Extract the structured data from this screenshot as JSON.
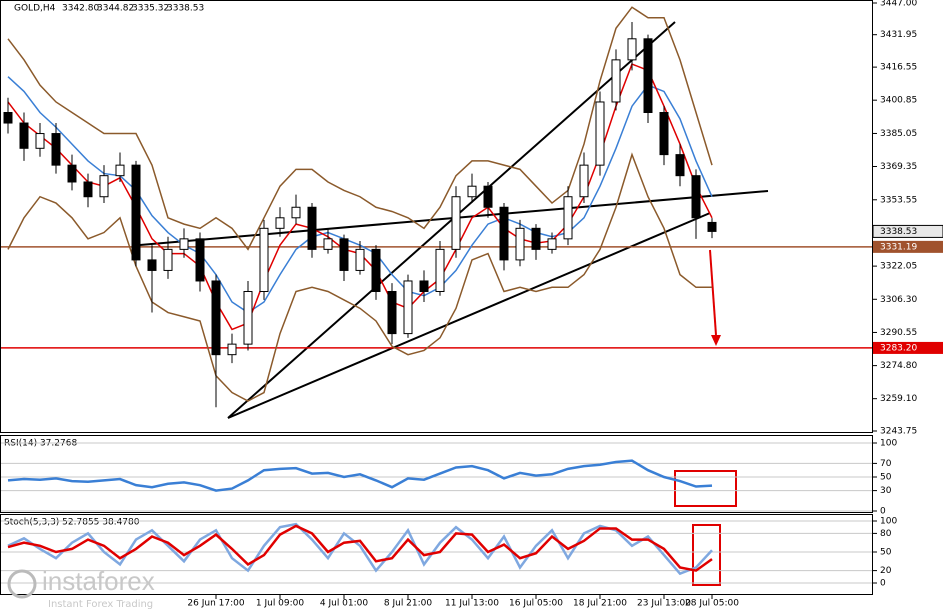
{
  "header": {
    "symbol": "GOLD,H4",
    "ohlc": [
      "3342.80",
      "3344.82",
      "3335.32",
      "3338.53"
    ]
  },
  "logo": {
    "brand": "instaforex",
    "tagline": "Instant Forex Trading"
  },
  "chart_data": [
    {
      "type": "candlestick",
      "categories": [
        null,
        null,
        null,
        null,
        null,
        null,
        null,
        null,
        null,
        null,
        null,
        null,
        null,
        "26 Jun 17:00",
        null,
        null,
        null,
        "1 Jul 09:00",
        null,
        null,
        null,
        "4 Jul 01:00",
        null,
        null,
        null,
        "8 Jul 21:00",
        null,
        null,
        null,
        "11 Jul 13:00",
        null,
        null,
        null,
        "16 Jul 05:00",
        null,
        null,
        null,
        "18 Jul 21:00",
        null,
        null,
        null,
        "23 Jul 13:00",
        null,
        null,
        "28 Jul 05:00"
      ],
      "open": [
        3395,
        3390,
        3378,
        3385,
        3370,
        3362,
        3355,
        3365,
        3370,
        3325,
        3320,
        3330,
        3335,
        3315,
        3280,
        3285,
        3310,
        3340,
        3345,
        3350,
        3330,
        3335,
        3320,
        3330,
        3310,
        3290,
        3315,
        3310,
        3330,
        3355,
        3360,
        3350,
        3325,
        3340,
        3330,
        3335,
        3355,
        3370,
        3400,
        3420,
        3430,
        3395,
        3375,
        3365,
        3342.8
      ],
      "high": [
        3402,
        3395,
        3390,
        3390,
        3375,
        3366,
        3370,
        3376,
        3372,
        3332,
        3336,
        3340,
        3338,
        3318,
        3290,
        3315,
        3344,
        3350,
        3356,
        3352,
        3340,
        3337,
        3334,
        3332,
        3314,
        3318,
        3320,
        3334,
        3360,
        3366,
        3362,
        3352,
        3344,
        3342,
        3338,
        3360,
        3376,
        3405,
        3425,
        3438,
        3432,
        3398,
        3380,
        3368,
        3344.82
      ],
      "low": [
        3385,
        3372,
        3374,
        3366,
        3358,
        3350,
        3352,
        3362,
        3322,
        3300,
        3316,
        3326,
        3310,
        3255,
        3276,
        3282,
        3306,
        3336,
        3342,
        3326,
        3328,
        3315,
        3318,
        3306,
        3285,
        3288,
        3305,
        3308,
        3326,
        3352,
        3345,
        3320,
        3322,
        3325,
        3328,
        3332,
        3352,
        3365,
        3396,
        3415,
        3390,
        3370,
        3360,
        3335,
        3335.32
      ],
      "close": [
        3390,
        3378,
        3385,
        3370,
        3362,
        3355,
        3365,
        3370,
        3325,
        3320,
        3330,
        3335,
        3315,
        3280,
        3285,
        3310,
        3340,
        3345,
        3350,
        3330,
        3335,
        3320,
        3330,
        3310,
        3290,
        3315,
        3310,
        3330,
        3355,
        3360,
        3350,
        3325,
        3340,
        3330,
        3335,
        3355,
        3370,
        3400,
        3420,
        3430,
        3395,
        3375,
        3365,
        3345,
        3338.53
      ],
      "candle_color": "#000000",
      "series": [
        {
          "color": "#8b5a2b",
          "values": [
            3430,
            3420,
            3408,
            3400,
            3395,
            3390,
            3385,
            3385,
            3385,
            3370,
            3345,
            3342,
            3340,
            3345,
            3340,
            3330,
            3345,
            3360,
            3368,
            3368,
            3362,
            3358,
            3355,
            3350,
            3348,
            3345,
            3340,
            3350,
            3365,
            3372,
            3372,
            3370,
            3368,
            3360,
            3352,
            3358,
            3380,
            3410,
            3435,
            3445,
            3440,
            3440,
            3420,
            3395,
            3370
          ]
        },
        {
          "color": "#8b5a2b",
          "values": [
            3330,
            3345,
            3355,
            3352,
            3345,
            3335,
            3338,
            3345,
            3322,
            3305,
            3300,
            3298,
            3296,
            3270,
            3262,
            3258,
            3262,
            3290,
            3310,
            3312,
            3310,
            3306,
            3302,
            3296,
            3284,
            3280,
            3282,
            3288,
            3302,
            3325,
            3328,
            3310,
            3312,
            3310,
            3312,
            3312,
            3318,
            3330,
            3350,
            3375,
            3355,
            3340,
            3318,
            3312,
            3312
          ]
        },
        {
          "color": "#3a7fd5",
          "values": [
            3412,
            3405,
            3395,
            3388,
            3380,
            3372,
            3366,
            3365,
            3358,
            3346,
            3338,
            3332,
            3328,
            3318,
            3305,
            3300,
            3305,
            3318,
            3330,
            3336,
            3338,
            3335,
            3332,
            3328,
            3318,
            3310,
            3308,
            3312,
            3320,
            3332,
            3342,
            3345,
            3342,
            3338,
            3336,
            3338,
            3345,
            3360,
            3378,
            3398,
            3408,
            3405,
            3392,
            3372,
            3355
          ]
        },
        {
          "color": "#e00000",
          "values": [
            3400,
            3390,
            3384,
            3378,
            3370,
            3362,
            3360,
            3364,
            3350,
            3335,
            3328,
            3328,
            3322,
            3305,
            3292,
            3295,
            3315,
            3332,
            3342,
            3340,
            3336,
            3330,
            3328,
            3320,
            3305,
            3302,
            3310,
            3316,
            3330,
            3345,
            3350,
            3340,
            3335,
            3333,
            3334,
            3342,
            3355,
            3375,
            3398,
            3418,
            3415,
            3398,
            3380,
            3360,
            3345
          ]
        }
      ],
      "ylim": [
        3243.75,
        3447
      ],
      "yticks": [
        {
          "value": 3447,
          "label": "3447.00"
        },
        3431.95,
        3416.55,
        3400.85,
        3385.05,
        3369.35,
        3353.55,
        3322.05,
        {
          "value": 3306.3,
          "label": "3306.30"
        },
        3290.55,
        {
          "value": 3274.8,
          "label": "3274.80"
        },
        {
          "value": 3259.1,
          "label": "3259.10"
        },
        3243.75
      ],
      "hlines": [
        {
          "value": 3331.19,
          "label": "3331.19",
          "color": "#a0522d"
        },
        {
          "value": 3283.2,
          "label": "3283.20",
          "color": "#e00000"
        }
      ]
    },
    {
      "type": "line",
      "title": "RSI(14) 37.2768",
      "series": [
        {
          "color": "#3a7fd5",
          "values": [
            45,
            47,
            46,
            48,
            44,
            43,
            45,
            47,
            38,
            35,
            40,
            42,
            38,
            30,
            33,
            45,
            60,
            62,
            63,
            55,
            56,
            50,
            54,
            45,
            35,
            48,
            46,
            55,
            64,
            66,
            60,
            48,
            56,
            52,
            54,
            62,
            66,
            68,
            72,
            74,
            60,
            50,
            44,
            36,
            37.2768
          ]
        }
      ],
      "ylim": [
        0,
        100
      ],
      "yticks": [
        100,
        70,
        50,
        30,
        0
      ]
    },
    {
      "type": "line",
      "title": "Stoch(5,3,3) 52.7855 38.4780",
      "series": [
        {
          "color": "#7fa8e0",
          "values": [
            60,
            72,
            55,
            40,
            65,
            80,
            50,
            30,
            70,
            85,
            60,
            35,
            70,
            85,
            40,
            20,
            60,
            90,
            95,
            70,
            40,
            80,
            60,
            20,
            50,
            85,
            30,
            65,
            90,
            70,
            40,
            75,
            25,
            60,
            85,
            40,
            80,
            92,
            85,
            60,
            75,
            45,
            15,
            25,
            52.7855
          ]
        },
        {
          "color": "#e00000",
          "values": [
            58,
            65,
            60,
            50,
            55,
            70,
            60,
            40,
            55,
            75,
            65,
            45,
            60,
            78,
            55,
            30,
            45,
            78,
            92,
            80,
            50,
            65,
            68,
            35,
            40,
            70,
            45,
            50,
            80,
            78,
            50,
            62,
            40,
            48,
            75,
            55,
            68,
            88,
            88,
            70,
            70,
            55,
            25,
            20,
            38.478
          ]
        }
      ],
      "ylim": [
        0,
        100
      ],
      "yticks": [
        100,
        80,
        50,
        20,
        0
      ]
    }
  ]
}
